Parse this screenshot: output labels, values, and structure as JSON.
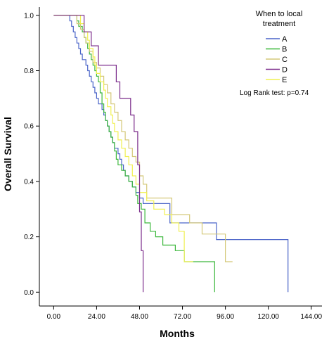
{
  "chart_data": {
    "type": "line",
    "title": "",
    "xlabel": "Months",
    "ylabel": "Overall Survival",
    "xlim": [
      -8,
      150
    ],
    "ylim": [
      -0.05,
      1.03
    ],
    "x_ticks": [
      0,
      24,
      48,
      72,
      96,
      120,
      144
    ],
    "x_tick_labels": [
      "0.00",
      "24.00",
      "48.00",
      "72.00",
      "96.00",
      "120.00",
      "144.00"
    ],
    "y_ticks": [
      0,
      0.2,
      0.4,
      0.6,
      0.8,
      1.0
    ],
    "y_tick_labels": [
      "0.0",
      "0.2",
      "0.4",
      "0.6",
      "0.8",
      "1.0"
    ],
    "grid": false,
    "legend": {
      "title_line1": "When to local",
      "title_line2": "treatment",
      "position": "top-right"
    },
    "annotation": "Log Rank test: p=0.74",
    "series": [
      {
        "name": "A",
        "color": "#4a64c8",
        "points": [
          [
            0,
            1.0
          ],
          [
            8,
            1.0
          ],
          [
            9,
            0.98
          ],
          [
            10,
            0.96
          ],
          [
            11,
            0.94
          ],
          [
            12,
            0.92
          ],
          [
            13,
            0.9
          ],
          [
            14,
            0.88
          ],
          [
            15,
            0.86
          ],
          [
            16,
            0.84
          ],
          [
            18,
            0.82
          ],
          [
            19,
            0.8
          ],
          [
            20,
            0.78
          ],
          [
            21,
            0.76
          ],
          [
            22,
            0.74
          ],
          [
            23,
            0.72
          ],
          [
            24,
            0.7
          ],
          [
            25,
            0.68
          ],
          [
            27,
            0.66
          ],
          [
            28,
            0.64
          ],
          [
            29,
            0.62
          ],
          [
            30,
            0.6
          ],
          [
            31,
            0.58
          ],
          [
            32,
            0.56
          ],
          [
            33,
            0.54
          ],
          [
            34,
            0.52
          ],
          [
            36,
            0.5
          ],
          [
            37,
            0.48
          ],
          [
            38,
            0.46
          ],
          [
            39,
            0.44
          ],
          [
            40,
            0.42
          ],
          [
            42,
            0.4
          ],
          [
            44,
            0.38
          ],
          [
            46,
            0.36
          ],
          [
            48,
            0.34
          ],
          [
            50,
            0.32
          ],
          [
            63,
            0.32
          ],
          [
            65,
            0.25
          ],
          [
            89,
            0.25
          ],
          [
            91,
            0.19
          ],
          [
            131,
            0.19
          ],
          [
            131,
            0.0
          ]
        ]
      },
      {
        "name": "B",
        "color": "#3cb83c",
        "points": [
          [
            0,
            1.0
          ],
          [
            12,
            1.0
          ],
          [
            13,
            0.98
          ],
          [
            14,
            0.96
          ],
          [
            16,
            0.94
          ],
          [
            17,
            0.92
          ],
          [
            18,
            0.9
          ],
          [
            19,
            0.88
          ],
          [
            20,
            0.86
          ],
          [
            21,
            0.84
          ],
          [
            22,
            0.82
          ],
          [
            23,
            0.8
          ],
          [
            24,
            0.78
          ],
          [
            25,
            0.76
          ],
          [
            26,
            0.72
          ],
          [
            27,
            0.68
          ],
          [
            28,
            0.65
          ],
          [
            29,
            0.62
          ],
          [
            30,
            0.6
          ],
          [
            31,
            0.58
          ],
          [
            32,
            0.56
          ],
          [
            33,
            0.54
          ],
          [
            34,
            0.51
          ],
          [
            35,
            0.48
          ],
          [
            36,
            0.46
          ],
          [
            38,
            0.44
          ],
          [
            40,
            0.42
          ],
          [
            42,
            0.4
          ],
          [
            44,
            0.38
          ],
          [
            46,
            0.35
          ],
          [
            47,
            0.32
          ],
          [
            49,
            0.3
          ],
          [
            51,
            0.25
          ],
          [
            54,
            0.22
          ],
          [
            57,
            0.2
          ],
          [
            61,
            0.17
          ],
          [
            68,
            0.15
          ],
          [
            73,
            0.11
          ],
          [
            90,
            0.11
          ],
          [
            90,
            0.0
          ]
        ]
      },
      {
        "name": "C",
        "color": "#d4c878",
        "points": [
          [
            0,
            1.0
          ],
          [
            12,
            1.0
          ],
          [
            13,
            0.97
          ],
          [
            15,
            0.95
          ],
          [
            17,
            0.92
          ],
          [
            18,
            0.9
          ],
          [
            20,
            0.87
          ],
          [
            22,
            0.83
          ],
          [
            24,
            0.81
          ],
          [
            26,
            0.78
          ],
          [
            28,
            0.75
          ],
          [
            30,
            0.72
          ],
          [
            32,
            0.68
          ],
          [
            34,
            0.65
          ],
          [
            36,
            0.62
          ],
          [
            38,
            0.58
          ],
          [
            40,
            0.55
          ],
          [
            42,
            0.52
          ],
          [
            44,
            0.49
          ],
          [
            46,
            0.47
          ],
          [
            48,
            0.42
          ],
          [
            50,
            0.39
          ],
          [
            52,
            0.34
          ],
          [
            64,
            0.34
          ],
          [
            66,
            0.28
          ],
          [
            74,
            0.28
          ],
          [
            76,
            0.25
          ],
          [
            81,
            0.25
          ],
          [
            83,
            0.21
          ],
          [
            94,
            0.21
          ],
          [
            96,
            0.11
          ],
          [
            100,
            0.11
          ]
        ]
      },
      {
        "name": "D",
        "color": "#7a2a8a",
        "points": [
          [
            0,
            1.0
          ],
          [
            16,
            1.0
          ],
          [
            17,
            0.94
          ],
          [
            20,
            0.94
          ],
          [
            21,
            0.89
          ],
          [
            24,
            0.89
          ],
          [
            25,
            0.82
          ],
          [
            34,
            0.82
          ],
          [
            35,
            0.76
          ],
          [
            36,
            0.76
          ],
          [
            37,
            0.7
          ],
          [
            42,
            0.7
          ],
          [
            43,
            0.64
          ],
          [
            44,
            0.64
          ],
          [
            45,
            0.58
          ],
          [
            46,
            0.58
          ],
          [
            47,
            0.52
          ],
          [
            47,
            0.46
          ],
          [
            48,
            0.41
          ],
          [
            48,
            0.35
          ],
          [
            48,
            0.29
          ],
          [
            49,
            0.22
          ],
          [
            49,
            0.15
          ],
          [
            50,
            0.15
          ],
          [
            50,
            0.0
          ]
        ]
      },
      {
        "name": "E",
        "color": "#f0f050",
        "points": [
          [
            0,
            1.0
          ],
          [
            14,
            1.0
          ],
          [
            15,
            0.97
          ],
          [
            17,
            0.94
          ],
          [
            19,
            0.91
          ],
          [
            20,
            0.88
          ],
          [
            22,
            0.85
          ],
          [
            23,
            0.82
          ],
          [
            24,
            0.79
          ],
          [
            26,
            0.76
          ],
          [
            28,
            0.73
          ],
          [
            29,
            0.7
          ],
          [
            30,
            0.67
          ],
          [
            32,
            0.64
          ],
          [
            33,
            0.61
          ],
          [
            34,
            0.58
          ],
          [
            36,
            0.55
          ],
          [
            38,
            0.52
          ],
          [
            40,
            0.49
          ],
          [
            42,
            0.46
          ],
          [
            44,
            0.42
          ],
          [
            46,
            0.39
          ],
          [
            48,
            0.36
          ],
          [
            52,
            0.33
          ],
          [
            56,
            0.3
          ],
          [
            62,
            0.28
          ],
          [
            66,
            0.25
          ],
          [
            70,
            0.22
          ],
          [
            73,
            0.11
          ],
          [
            78,
            0.11
          ]
        ]
      }
    ]
  }
}
